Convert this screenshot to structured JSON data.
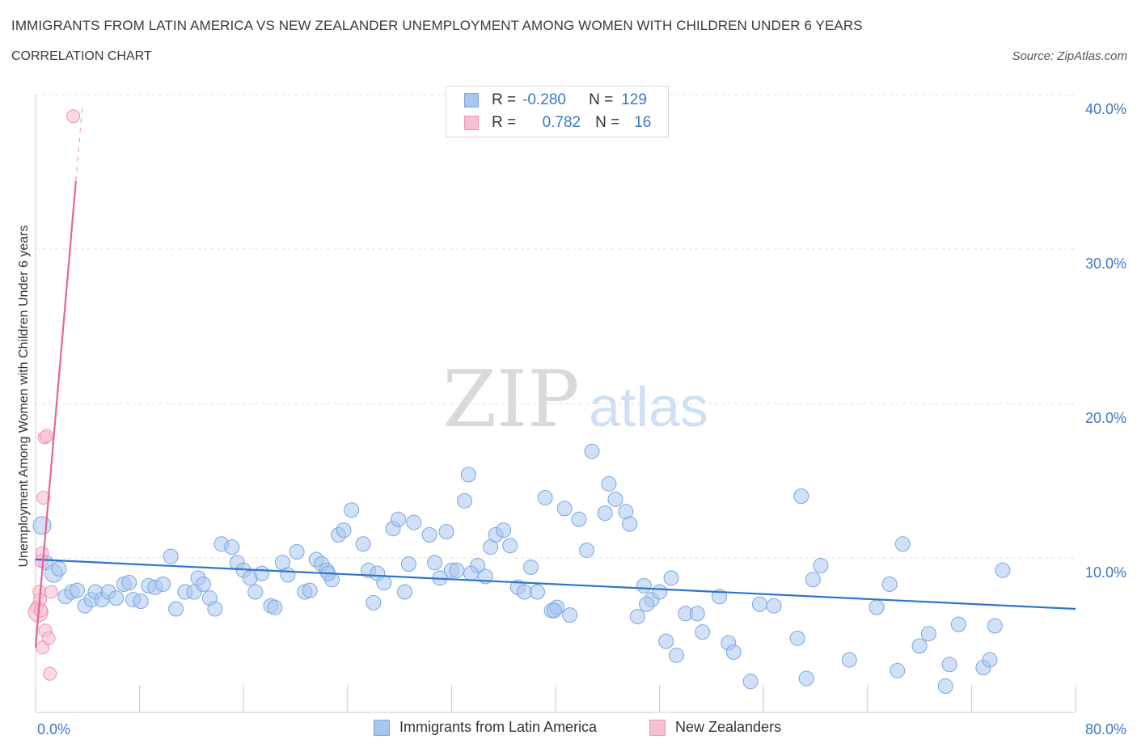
{
  "header": {
    "title": "IMMIGRANTS FROM LATIN AMERICA VS NEW ZEALANDER UNEMPLOYMENT AMONG WOMEN WITH CHILDREN UNDER 6 YEARS",
    "subtitle": "CORRELATION CHART",
    "source": "Source: ZipAtlas.com"
  },
  "watermark": {
    "zip": "ZIP",
    "atlas": "atlas"
  },
  "legend": {
    "rows": [
      {
        "r_label": "R =",
        "r_value": "-0.280",
        "n_label": "N =",
        "n_value": "129"
      },
      {
        "r_label": "R =",
        "r_value": "0.782",
        "n_label": "N =",
        "n_value": "16"
      }
    ]
  },
  "colors": {
    "blue_fill": "#a9c7ee",
    "blue_stroke": "#7aa6e0",
    "blue_line": "#2f74cc",
    "pink_fill": "#f7bfd0",
    "pink_stroke": "#ef94b1",
    "pink_line": "#e8629a",
    "axis_text": "#3c78c8"
  },
  "chart_data": {
    "type": "scatter",
    "title": "IMMIGRANTS FROM LATIN AMERICA VS NEW ZEALANDER UNEMPLOYMENT AMONG WOMEN WITH CHILDREN UNDER 6 YEARS",
    "xlabel": "",
    "ylabel": "Unemployment Among Women with Children Under 6 years",
    "xlim": [
      0,
      80
    ],
    "ylim": [
      0,
      40
    ],
    "x_tick_labels": [
      "0.0%",
      "80.0%"
    ],
    "y_tick_labels": [
      "10.0%",
      "20.0%",
      "30.0%",
      "40.0%"
    ],
    "y_ticks": [
      10,
      20,
      30,
      40
    ],
    "grid": true,
    "series": [
      {
        "name": "Immigrants from Latin America",
        "color": "#a9c7ee",
        "trend": {
          "x": [
            0,
            80
          ],
          "y": [
            9.9,
            6.7
          ]
        },
        "points": [
          [
            0.5,
            12.1
          ],
          [
            0.8,
            9.7
          ],
          [
            1.4,
            9.0
          ],
          [
            1.8,
            9.3
          ],
          [
            2.3,
            7.5
          ],
          [
            2.8,
            7.8
          ],
          [
            3.2,
            7.9
          ],
          [
            3.8,
            6.9
          ],
          [
            4.3,
            7.3
          ],
          [
            4.6,
            7.8
          ],
          [
            5.1,
            7.3
          ],
          [
            5.6,
            7.8
          ],
          [
            6.2,
            7.4
          ],
          [
            6.8,
            8.3
          ],
          [
            7.2,
            8.4
          ],
          [
            7.5,
            7.3
          ],
          [
            8.1,
            7.2
          ],
          [
            8.7,
            8.2
          ],
          [
            9.2,
            8.1
          ],
          [
            10.4,
            10.1
          ],
          [
            10.8,
            6.7
          ],
          [
            11.5,
            7.8
          ],
          [
            12.2,
            7.8
          ],
          [
            12.5,
            8.7
          ],
          [
            12.9,
            8.3
          ],
          [
            13.4,
            7.4
          ],
          [
            13.8,
            6.7
          ],
          [
            14.3,
            10.9
          ],
          [
            15.1,
            10.7
          ],
          [
            15.5,
            9.7
          ],
          [
            16.0,
            9.2
          ],
          [
            16.5,
            8.7
          ],
          [
            16.9,
            7.8
          ],
          [
            17.4,
            9.0
          ],
          [
            18.1,
            6.9
          ],
          [
            18.4,
            6.8
          ],
          [
            19.0,
            9.7
          ],
          [
            19.4,
            8.9
          ],
          [
            20.1,
            10.4
          ],
          [
            20.7,
            7.8
          ],
          [
            21.1,
            7.9
          ],
          [
            21.6,
            9.9
          ],
          [
            22.0,
            9.6
          ],
          [
            22.4,
            9.2
          ],
          [
            22.8,
            8.6
          ],
          [
            23.3,
            11.5
          ],
          [
            23.7,
            11.8
          ],
          [
            24.3,
            13.1
          ],
          [
            25.2,
            10.9
          ],
          [
            25.6,
            9.2
          ],
          [
            26.0,
            7.1
          ],
          [
            26.3,
            9.0
          ],
          [
            26.8,
            8.4
          ],
          [
            27.5,
            11.9
          ],
          [
            27.9,
            12.5
          ],
          [
            28.4,
            7.8
          ],
          [
            28.7,
            9.6
          ],
          [
            29.1,
            12.3
          ],
          [
            30.3,
            11.5
          ],
          [
            30.7,
            9.7
          ],
          [
            31.1,
            8.7
          ],
          [
            31.6,
            11.7
          ],
          [
            32.0,
            9.2
          ],
          [
            32.4,
            9.2
          ],
          [
            33.0,
            13.7
          ],
          [
            33.3,
            15.4
          ],
          [
            34.0,
            9.5
          ],
          [
            34.6,
            8.8
          ],
          [
            35.0,
            10.7
          ],
          [
            35.4,
            11.5
          ],
          [
            36.0,
            11.8
          ],
          [
            36.5,
            10.8
          ],
          [
            37.1,
            8.1
          ],
          [
            37.6,
            7.8
          ],
          [
            38.1,
            9.4
          ],
          [
            38.6,
            7.8
          ],
          [
            39.2,
            13.9
          ],
          [
            39.7,
            6.6
          ],
          [
            40.1,
            6.8
          ],
          [
            40.7,
            13.2
          ],
          [
            41.1,
            6.3
          ],
          [
            41.8,
            12.5
          ],
          [
            42.4,
            10.5
          ],
          [
            42.8,
            16.9
          ],
          [
            43.8,
            12.9
          ],
          [
            44.1,
            14.8
          ],
          [
            44.6,
            13.8
          ],
          [
            45.4,
            13.0
          ],
          [
            45.7,
            12.2
          ],
          [
            46.3,
            6.2
          ],
          [
            46.8,
            8.2
          ],
          [
            47.4,
            7.3
          ],
          [
            48.0,
            7.8
          ],
          [
            48.5,
            4.6
          ],
          [
            48.9,
            8.7
          ],
          [
            49.3,
            3.7
          ],
          [
            50.0,
            6.4
          ],
          [
            50.9,
            6.4
          ],
          [
            51.3,
            5.2
          ],
          [
            52.6,
            7.5
          ],
          [
            53.3,
            4.5
          ],
          [
            53.7,
            3.9
          ],
          [
            55.0,
            2.0
          ],
          [
            55.7,
            7.0
          ],
          [
            56.8,
            6.9
          ],
          [
            58.6,
            4.8
          ],
          [
            58.9,
            14.0
          ],
          [
            59.3,
            2.2
          ],
          [
            59.8,
            8.6
          ],
          [
            60.4,
            9.5
          ],
          [
            62.6,
            3.4
          ],
          [
            64.7,
            6.8
          ],
          [
            65.7,
            8.3
          ],
          [
            66.3,
            2.7
          ],
          [
            66.7,
            10.9
          ],
          [
            68.0,
            4.3
          ],
          [
            68.7,
            5.1
          ],
          [
            70.0,
            1.7
          ],
          [
            70.3,
            3.1
          ],
          [
            71.0,
            5.7
          ],
          [
            72.9,
            2.9
          ],
          [
            73.4,
            3.4
          ],
          [
            73.8,
            5.6
          ],
          [
            74.4,
            9.2
          ],
          [
            39.9,
            6.6
          ],
          [
            47.0,
            7.0
          ],
          [
            33.5,
            9.0
          ],
          [
            22.5,
            9.0
          ],
          [
            9.8,
            8.3
          ]
        ]
      },
      {
        "name": "New Zealanders",
        "color": "#f7bfd0",
        "trend": {
          "x": [
            0.0,
            3.1
          ],
          "y": [
            4.2,
            34.4
          ],
          "dashed_to": {
            "x": 3.6,
            "y": 39.3
          }
        },
        "points": [
          [
            0.1,
            6.8
          ],
          [
            0.2,
            6.5
          ],
          [
            0.3,
            7.8
          ],
          [
            0.35,
            7.3
          ],
          [
            0.4,
            6.6
          ],
          [
            0.5,
            10.3
          ],
          [
            0.55,
            4.2
          ],
          [
            0.6,
            13.9
          ],
          [
            0.7,
            17.8
          ],
          [
            0.75,
            5.3
          ],
          [
            0.85,
            17.9
          ],
          [
            1.0,
            4.8
          ],
          [
            1.1,
            2.5
          ],
          [
            1.2,
            7.8
          ],
          [
            2.9,
            38.6
          ],
          [
            0.45,
            9.8
          ]
        ]
      }
    ]
  },
  "bottom_legend": {
    "items": [
      {
        "label": "Immigrants from Latin America"
      },
      {
        "label": "New Zealanders"
      }
    ]
  }
}
